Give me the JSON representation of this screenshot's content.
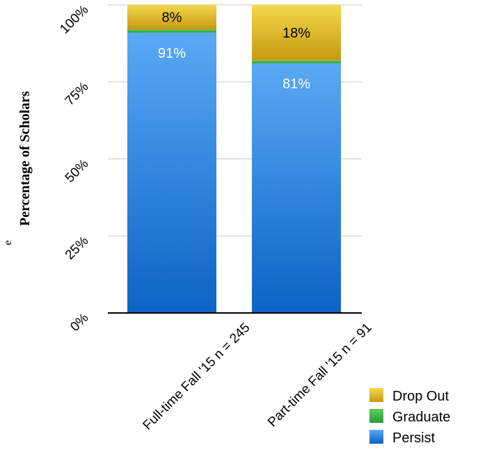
{
  "chart_data": {
    "type": "bar",
    "stacked": true,
    "title": "",
    "ylabel": "Percentage of Scholars",
    "ylabel_fragment": "e",
    "xlabel": "",
    "ylim": [
      0,
      100
    ],
    "yticks": [
      {
        "value": 0,
        "label": "0%"
      },
      {
        "value": 25,
        "label": "25%"
      },
      {
        "value": 50,
        "label": "50%"
      },
      {
        "value": 75,
        "label": "75%"
      },
      {
        "value": 100,
        "label": "100%"
      }
    ],
    "grid": true,
    "legend_position": "bottom-right",
    "categories": [
      "Full-time Fall '15 n = 245",
      "Part-time Fall '15 n = 91"
    ],
    "series": [
      {
        "name": "Persist",
        "values": [
          91,
          81
        ],
        "labels": [
          "91%",
          "81%"
        ],
        "color": "#3a8ee6",
        "label_color": "#ffffff"
      },
      {
        "name": "Graduate",
        "values": [
          1,
          1
        ],
        "labels": [
          "",
          ""
        ],
        "color": "#3bb54a",
        "label_color": "#000000"
      },
      {
        "name": "Drop Out",
        "values": [
          8,
          18
        ],
        "labels": [
          "8%",
          "18%"
        ],
        "color": "#e0bc1f",
        "label_color": "#000000"
      }
    ],
    "legend_order": [
      "Drop Out",
      "Graduate",
      "Persist"
    ]
  }
}
